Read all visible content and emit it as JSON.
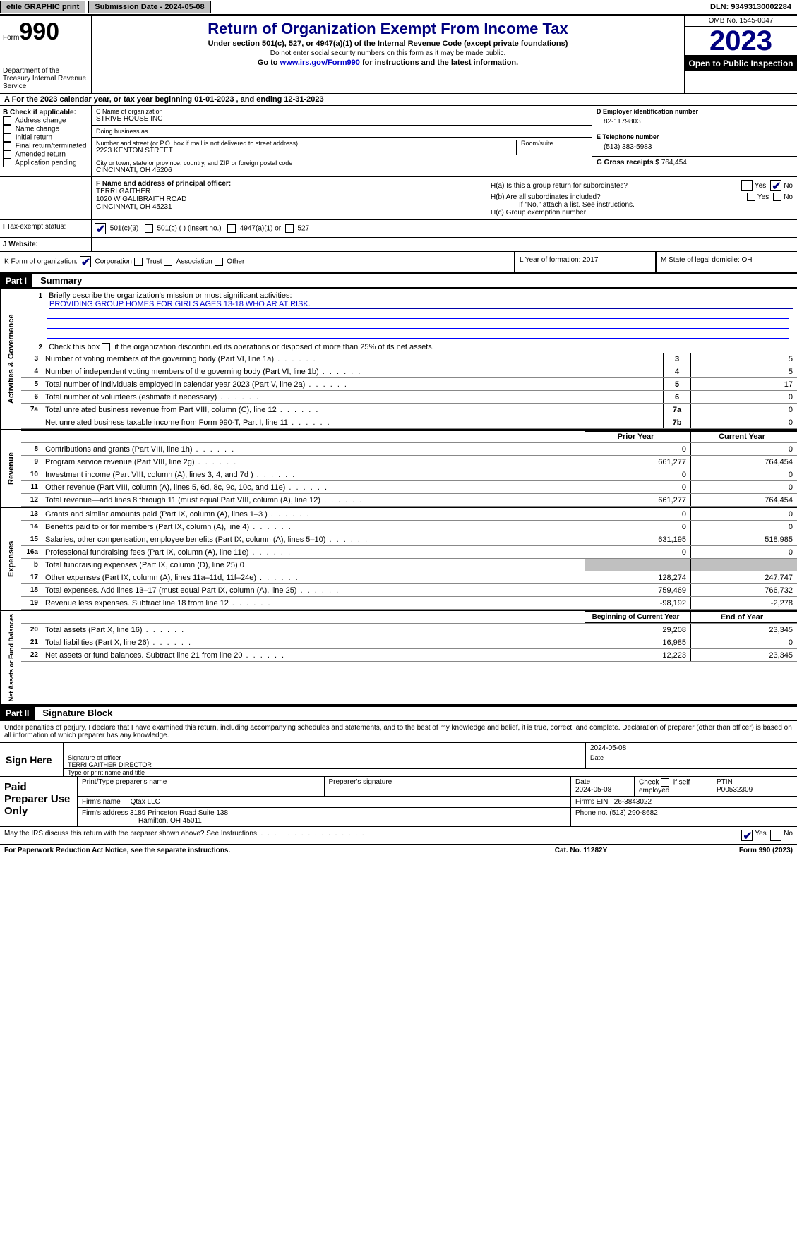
{
  "topbar": {
    "efile": "efile GRAPHIC print",
    "submission": "Submission Date - 2024-05-08",
    "dln_label": "DLN:",
    "dln": "93493130002284"
  },
  "header": {
    "form_label": "Form",
    "form_num": "990",
    "title": "Return of Organization Exempt From Income Tax",
    "subtitle": "Under section 501(c), 527, or 4947(a)(1) of the Internal Revenue Code (except private foundations)",
    "note1": "Do not enter social security numbers on this form as it may be made public.",
    "note2_pre": "Go to ",
    "note2_link": "www.irs.gov/Form990",
    "note2_post": " for instructions and the latest information.",
    "dept": "Department of the Treasury\nInternal Revenue Service",
    "omb": "OMB No. 1545-0047",
    "year": "2023",
    "inspect": "Open to Public Inspection"
  },
  "period": {
    "label_a": "A For the 2023 calendar year, or tax year beginning ",
    "begin": "01-01-2023",
    "mid": " , and ending ",
    "end": "12-31-2023"
  },
  "box_b": {
    "label": "B Check if applicable:",
    "items": [
      "Address change",
      "Name change",
      "Initial return",
      "Final return/terminated",
      "Amended return",
      "Application pending"
    ]
  },
  "box_c": {
    "name_label": "C Name of organization",
    "name": "STRIVE HOUSE INC",
    "dba_label": "Doing business as",
    "dba": "",
    "street_label": "Number and street (or P.O. box if mail is not delivered to street address)",
    "street": "2223 KENTON STREET",
    "room_label": "Room/suite",
    "city_label": "City or town, state or province, country, and ZIP or foreign postal code",
    "city": "CINCINNATI, OH  45206"
  },
  "box_d": {
    "ein_label": "D Employer identification number",
    "ein": "82-1179803",
    "phone_label": "E Telephone number",
    "phone": "(513) 383-5983",
    "gross_label": "G Gross receipts $",
    "gross": "764,454"
  },
  "box_f": {
    "label": "F Name and address of principal officer:",
    "name": "TERRI GAITHER",
    "addr1": "1020 W GALIBRAITH ROAD",
    "addr2": "CINCINNATI, OH  45231"
  },
  "box_h": {
    "ha_label": "H(a)  Is this a group return for subordinates?",
    "hb_label": "H(b)  Are all subordinates included?",
    "hb_note": "If \"No,\" attach a list. See instructions.",
    "hc_label": "H(c)  Group exemption number",
    "yes": "Yes",
    "no": "No"
  },
  "row_i": {
    "label": "Tax-exempt status:",
    "opt1": "501(c)(3)",
    "opt2": "501(c) (  ) (insert no.)",
    "opt3": "4947(a)(1) or",
    "opt4": "527"
  },
  "row_j": {
    "label": "Website:",
    "value": ""
  },
  "row_k": {
    "label": "K Form of organization:",
    "opts": [
      "Corporation",
      "Trust",
      "Association",
      "Other"
    ]
  },
  "row_l": {
    "label": "L Year of formation:",
    "value": "2017"
  },
  "row_m": {
    "label": "M State of legal domicile:",
    "value": "OH"
  },
  "part1": {
    "header": "Part I",
    "title": "Summary"
  },
  "summary": {
    "line1_label": "Briefly describe the organization's mission or most significant activities:",
    "line1_value": "PROVIDING GROUP HOMES FOR GIRLS AGES 13-18 WHO AR AT RISK.",
    "line2": "Check this box      if the organization discontinued its operations or disposed of more than 25% of its net assets.",
    "gov_label": "Activities & Governance",
    "rev_label": "Revenue",
    "exp_label": "Expenses",
    "net_label": "Net Assets or Fund Balances",
    "lines_gov": [
      {
        "n": "3",
        "d": "Number of voting members of the governing body (Part VI, line 1a)",
        "box": "3",
        "v": "5"
      },
      {
        "n": "4",
        "d": "Number of independent voting members of the governing body (Part VI, line 1b)",
        "box": "4",
        "v": "5"
      },
      {
        "n": "5",
        "d": "Total number of individuals employed in calendar year 2023 (Part V, line 2a)",
        "box": "5",
        "v": "17"
      },
      {
        "n": "6",
        "d": "Total number of volunteers (estimate if necessary)",
        "box": "6",
        "v": "0"
      },
      {
        "n": "7a",
        "d": "Total unrelated business revenue from Part VIII, column (C), line 12",
        "box": "7a",
        "v": "0"
      },
      {
        "n": "",
        "d": "Net unrelated business taxable income from Form 990-T, Part I, line 11",
        "box": "7b",
        "v": "0"
      }
    ],
    "col_prior": "Prior Year",
    "col_current": "Current Year",
    "lines_rev": [
      {
        "n": "8",
        "d": "Contributions and grants (Part VIII, line 1h)",
        "p": "0",
        "c": "0"
      },
      {
        "n": "9",
        "d": "Program service revenue (Part VIII, line 2g)",
        "p": "661,277",
        "c": "764,454"
      },
      {
        "n": "10",
        "d": "Investment income (Part VIII, column (A), lines 3, 4, and 7d )",
        "p": "0",
        "c": "0"
      },
      {
        "n": "11",
        "d": "Other revenue (Part VIII, column (A), lines 5, 6d, 8c, 9c, 10c, and 11e)",
        "p": "0",
        "c": "0"
      },
      {
        "n": "12",
        "d": "Total revenue—add lines 8 through 11 (must equal Part VIII, column (A), line 12)",
        "p": "661,277",
        "c": "764,454"
      }
    ],
    "lines_exp": [
      {
        "n": "13",
        "d": "Grants and similar amounts paid (Part IX, column (A), lines 1–3 )",
        "p": "0",
        "c": "0"
      },
      {
        "n": "14",
        "d": "Benefits paid to or for members (Part IX, column (A), line 4)",
        "p": "0",
        "c": "0"
      },
      {
        "n": "15",
        "d": "Salaries, other compensation, employee benefits (Part IX, column (A), lines 5–10)",
        "p": "631,195",
        "c": "518,985"
      },
      {
        "n": "16a",
        "d": "Professional fundraising fees (Part IX, column (A), line 11e)",
        "p": "0",
        "c": "0"
      },
      {
        "n": "b",
        "d": "Total fundraising expenses (Part IX, column (D), line 25) 0",
        "p": "",
        "c": "",
        "grey": true
      },
      {
        "n": "17",
        "d": "Other expenses (Part IX, column (A), lines 11a–11d, 11f–24e)",
        "p": "128,274",
        "c": "247,747"
      },
      {
        "n": "18",
        "d": "Total expenses. Add lines 13–17 (must equal Part IX, column (A), line 25)",
        "p": "759,469",
        "c": "766,732"
      },
      {
        "n": "19",
        "d": "Revenue less expenses. Subtract line 18 from line 12",
        "p": "-98,192",
        "c": "-2,278"
      }
    ],
    "col_begin": "Beginning of Current Year",
    "col_end": "End of Year",
    "lines_net": [
      {
        "n": "20",
        "d": "Total assets (Part X, line 16)",
        "p": "29,208",
        "c": "23,345"
      },
      {
        "n": "21",
        "d": "Total liabilities (Part X, line 26)",
        "p": "16,985",
        "c": "0"
      },
      {
        "n": "22",
        "d": "Net assets or fund balances. Subtract line 21 from line 20",
        "p": "12,223",
        "c": "23,345"
      }
    ]
  },
  "part2": {
    "header": "Part II",
    "title": "Signature Block"
  },
  "perjury": "Under penalties of perjury, I declare that I have examined this return, including accompanying schedules and statements, and to the best of my knowledge and belief, it is true, correct, and complete. Declaration of preparer (other than officer) is based on all information of which preparer has any knowledge.",
  "sign": {
    "here": "Sign Here",
    "sig_label": "Signature of officer",
    "officer": "TERRI GAITHER  DIRECTOR",
    "type_label": "Type or print name and title",
    "date_label": "Date",
    "date": "2024-05-08"
  },
  "prep": {
    "label": "Paid Preparer Use Only",
    "name_label": "Print/Type preparer's name",
    "sig_label": "Preparer's signature",
    "date_label": "Date",
    "date": "2024-05-08",
    "check_label": "Check        if self-employed",
    "ptin_label": "PTIN",
    "ptin": "P00532309",
    "firm_name_label": "Firm's name",
    "firm_name": "Qtax LLC",
    "firm_ein_label": "Firm's EIN",
    "firm_ein": "26-3843022",
    "firm_addr_label": "Firm's address",
    "firm_addr1": "3189 Princeton Road Suite 138",
    "firm_addr2": "Hamilton, OH  45011",
    "phone_label": "Phone no.",
    "phone": "(513) 290-8682"
  },
  "discuss": {
    "q": "May the IRS discuss this return with the preparer shown above? See Instructions.",
    "yes": "Yes",
    "no": "No"
  },
  "footer": {
    "left": "For Paperwork Reduction Act Notice, see the separate instructions.",
    "mid": "Cat. No. 11282Y",
    "right_pre": "Form ",
    "right_form": "990",
    "right_post": " (2023)"
  }
}
